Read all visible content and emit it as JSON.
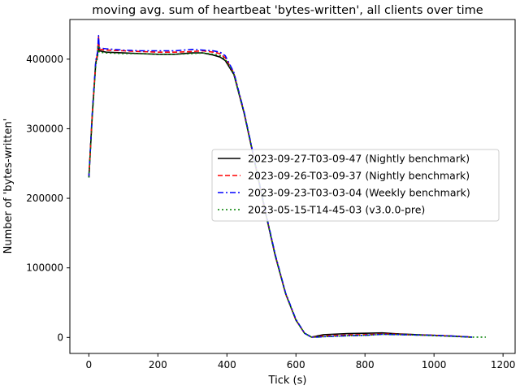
{
  "chart_data": {
    "type": "line",
    "title": "moving avg. sum of heartbeat 'bytes-written', all clients over time",
    "xlabel": "Tick (s)",
    "ylabel": "Number of 'bytes-written'",
    "xlim": [
      -55,
      1235
    ],
    "ylim": [
      -23000,
      457000
    ],
    "x_ticks": [
      0,
      200,
      400,
      600,
      800,
      1000,
      1200
    ],
    "x_tick_labels": [
      "0",
      "200",
      "400",
      "600",
      "800",
      "1000",
      "1200"
    ],
    "y_ticks": [
      0,
      100000,
      200000,
      300000,
      400000
    ],
    "y_tick_labels": [
      "0",
      "100000",
      "200000",
      "300000",
      "400000"
    ],
    "grid": false,
    "legend_position": "center-right",
    "series": [
      {
        "name": "2023-09-27-T03-09-47 (Nightly benchmark)",
        "color": "#000000",
        "dash": "solid",
        "x": [
          0,
          10,
          20,
          25,
          28,
          30,
          50,
          100,
          150,
          200,
          250,
          300,
          330,
          360,
          380,
          395,
          420,
          450,
          480,
          510,
          540,
          570,
          600,
          625,
          645,
          660,
          680,
          700,
          750,
          800,
          850,
          900,
          950,
          1000,
          1050,
          1110
        ],
        "y": [
          230000,
          320000,
          395000,
          405000,
          430000,
          412000,
          410000,
          409000,
          408000,
          407000,
          407000,
          409000,
          409000,
          406000,
          403000,
          398000,
          378000,
          322000,
          253000,
          183000,
          117000,
          63000,
          25000,
          6000,
          500,
          2000,
          4000,
          4500,
          5500,
          6000,
          6500,
          5000,
          4000,
          3000,
          2000,
          500
        ]
      },
      {
        "name": "2023-09-26-T03-09-37 (Nightly benchmark)",
        "color": "#ff0000",
        "dash": "dashed",
        "x": [
          0,
          10,
          20,
          25,
          28,
          30,
          50,
          100,
          150,
          200,
          250,
          300,
          330,
          360,
          380,
          395,
          420,
          450,
          480,
          510,
          540,
          570,
          600,
          625,
          645,
          660,
          680,
          700,
          750,
          800,
          850,
          900,
          950,
          1000,
          1050,
          1110
        ],
        "y": [
          230000,
          322000,
          396000,
          408000,
          432000,
          414000,
          413000,
          412000,
          411000,
          410000,
          410000,
          411000,
          412000,
          410000,
          408000,
          402000,
          380000,
          323000,
          254000,
          184000,
          118000,
          63000,
          25000,
          6000,
          500,
          1000,
          2000,
          2500,
          3500,
          4000,
          5000,
          4500,
          3500,
          3000,
          2000,
          500
        ]
      },
      {
        "name": "2023-09-23-T03-03-04 (Weekly benchmark)",
        "color": "#0000ff",
        "dash": "dashdot",
        "x": [
          0,
          10,
          20,
          25,
          28,
          30,
          50,
          100,
          150,
          200,
          250,
          300,
          330,
          360,
          380,
          395,
          420,
          450,
          480,
          510,
          540,
          570,
          600,
          625,
          645,
          660,
          680,
          700,
          750,
          800,
          850,
          900,
          950,
          1000,
          1050,
          1110
        ],
        "y": [
          230000,
          323000,
          398000,
          410000,
          434000,
          416000,
          415000,
          413000,
          412000,
          412000,
          412000,
          414000,
          413000,
          412000,
          410000,
          405000,
          381000,
          324000,
          255000,
          185000,
          119000,
          64000,
          26000,
          6000,
          500,
          500,
          1000,
          1500,
          2500,
          3000,
          4500,
          4000,
          3500,
          3000,
          2000,
          500
        ]
      },
      {
        "name": "2023-05-15-T14-45-03 (v3.0.0-pre)",
        "color": "#008000",
        "dash": "dotted",
        "x": [
          0,
          10,
          20,
          25,
          28,
          30,
          50,
          100,
          150,
          200,
          250,
          300,
          330,
          360,
          380,
          395,
          420,
          450,
          480,
          510,
          540,
          570,
          600,
          625,
          645,
          660,
          680,
          700,
          750,
          800,
          850,
          900,
          950,
          1000,
          1050,
          1100,
          1150
        ],
        "y": [
          230000,
          318000,
          392000,
          402000,
          420000,
          410000,
          409000,
          408000,
          408000,
          407000,
          407000,
          408000,
          409000,
          407000,
          405000,
          400000,
          379000,
          323000,
          254000,
          184000,
          118000,
          63000,
          25000,
          6000,
          500,
          500,
          1000,
          1500,
          2500,
          3000,
          4500,
          4000,
          3500,
          2500,
          1500,
          500,
          500
        ]
      }
    ]
  }
}
